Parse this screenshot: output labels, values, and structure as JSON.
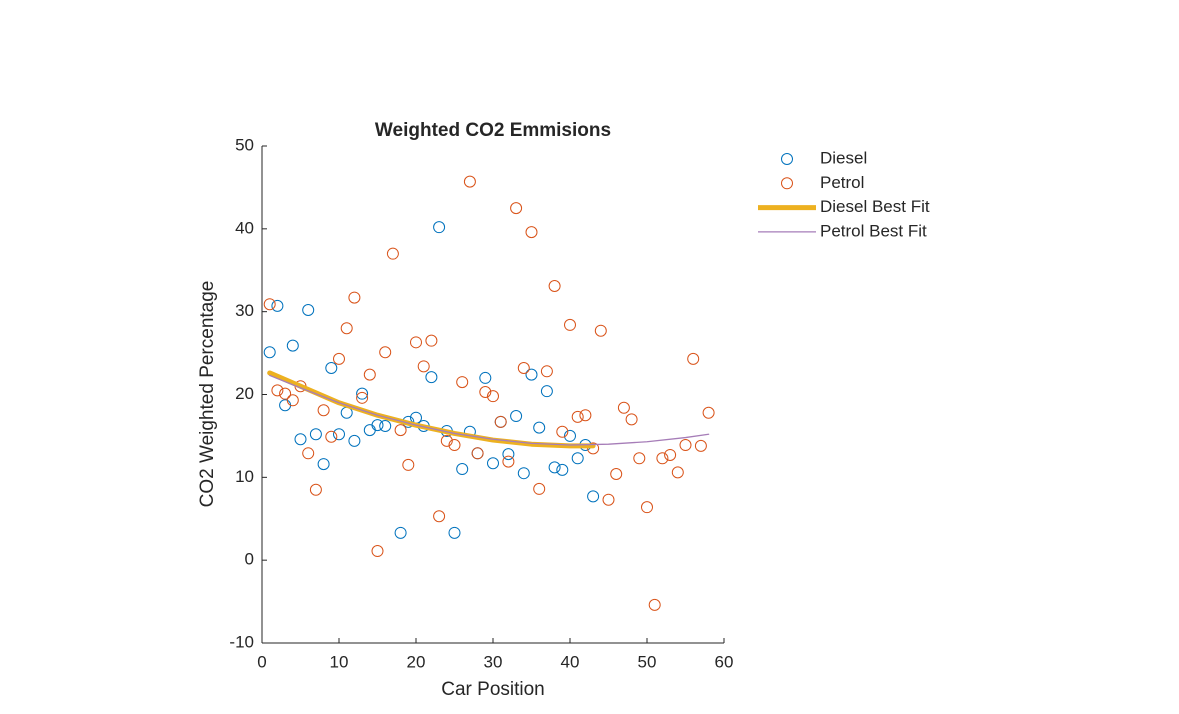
{
  "chart_data": {
    "type": "scatter",
    "title": "Weighted CO2 Emmisions",
    "xlabel": "Car Position",
    "ylabel": "CO2 Weighted Percentage",
    "xlim": [
      0,
      60
    ],
    "xticks": [
      0,
      10,
      20,
      30,
      40,
      50,
      60
    ],
    "ylim": [
      -10,
      50
    ],
    "yticks": [
      -10,
      0,
      10,
      20,
      30,
      40,
      50
    ],
    "series": [
      {
        "name": "Diesel",
        "kind": "points",
        "color": "#0072BD",
        "x": [
          1,
          2,
          3,
          4,
          5,
          6,
          7,
          8,
          9,
          10,
          11,
          12,
          13,
          14,
          15,
          16,
          18,
          19,
          20,
          21,
          22,
          23,
          24,
          25,
          26,
          27,
          28,
          29,
          30,
          31,
          32,
          33,
          34,
          35,
          36,
          37,
          38,
          39,
          40,
          41,
          42,
          43
        ],
        "values": [
          25.1,
          30.7,
          18.7,
          25.9,
          14.6,
          30.2,
          15.2,
          11.6,
          23.2,
          15.2,
          17.8,
          14.4,
          20.1,
          15.7,
          16.3,
          16.2,
          3.3,
          16.7,
          17.2,
          16.2,
          22.1,
          40.2,
          15.6,
          3.3,
          11.0,
          15.5,
          12.9,
          22.0,
          11.7,
          16.7,
          12.8,
          17.4,
          10.5,
          22.4,
          16.0,
          20.4,
          11.2,
          10.9,
          15.0,
          12.3,
          13.9,
          7.7
        ]
      },
      {
        "name": "Petrol",
        "kind": "points",
        "color": "#D95319",
        "x": [
          1,
          2,
          3,
          4,
          5,
          6,
          7,
          8,
          9,
          10,
          11,
          12,
          13,
          14,
          15,
          16,
          17,
          18,
          19,
          20,
          21,
          22,
          23,
          24,
          25,
          26,
          27,
          28,
          29,
          30,
          31,
          32,
          33,
          34,
          35,
          36,
          37,
          38,
          39,
          40,
          41,
          42,
          43,
          44,
          45,
          46,
          47,
          48,
          49,
          50,
          51,
          52,
          53,
          54,
          55,
          56,
          57,
          58
        ],
        "values": [
          30.9,
          20.5,
          20.1,
          19.3,
          21.0,
          12.9,
          8.5,
          18.1,
          14.9,
          24.3,
          28.0,
          31.7,
          19.6,
          22.4,
          1.1,
          25.1,
          37.0,
          15.7,
          11.5,
          26.3,
          23.4,
          26.5,
          5.3,
          14.4,
          13.9,
          21.5,
          45.7,
          12.9,
          20.3,
          19.8,
          16.7,
          11.9,
          42.5,
          23.2,
          39.6,
          8.6,
          22.8,
          33.1,
          15.5,
          28.4,
          17.3,
          17.5,
          13.5,
          27.7,
          7.3,
          10.4,
          18.4,
          17.0,
          12.3,
          6.4,
          -5.4,
          12.3,
          12.7,
          10.6,
          13.9,
          24.3,
          13.8,
          17.8
        ]
      },
      {
        "name": "Diesel Best Fit",
        "kind": "line",
        "color": "#EDB120",
        "width": 5,
        "x": [
          1,
          5,
          10,
          15,
          20,
          25,
          30,
          35,
          40,
          43
        ],
        "values": [
          22.6,
          21.0,
          19.0,
          17.5,
          16.3,
          15.3,
          14.5,
          14.0,
          13.8,
          13.8
        ]
      },
      {
        "name": "Petrol Best Fit",
        "kind": "line",
        "color": "#A67DB8",
        "width": 1.3,
        "x": [
          1,
          5,
          10,
          15,
          20,
          25,
          30,
          35,
          40,
          45,
          50,
          55,
          58
        ],
        "values": [
          22.3,
          20.8,
          19.0,
          17.5,
          16.3,
          15.3,
          14.6,
          14.1,
          13.9,
          14.0,
          14.3,
          14.8,
          15.2
        ]
      }
    ]
  }
}
